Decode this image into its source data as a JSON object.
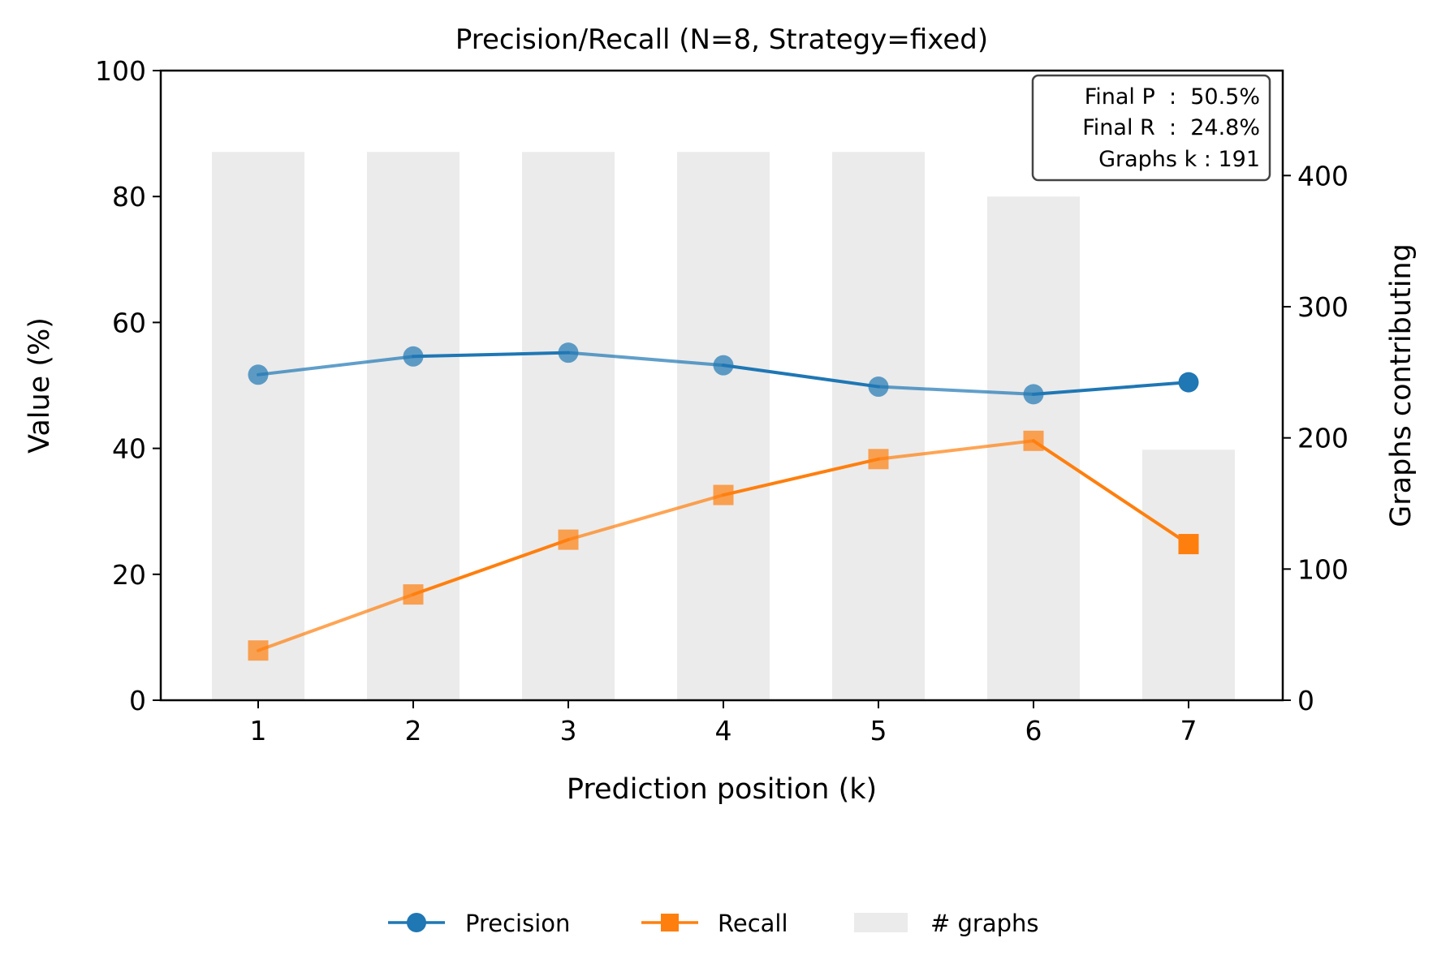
{
  "chart_data": {
    "type": "line",
    "title": "Precision/Recall (N=8, Strategy=fixed)",
    "xlabel": "Prediction position (k)",
    "ylabel": "Value (%)",
    "y2label": "Graphs contributing",
    "categories": [
      "1",
      "2",
      "3",
      "4",
      "5",
      "6",
      "7"
    ],
    "ylim": [
      0,
      100
    ],
    "y2lim": [
      0,
      480
    ],
    "yticks": [
      0,
      20,
      40,
      60,
      80,
      100
    ],
    "y2ticks": [
      0,
      100,
      200,
      300,
      400
    ],
    "series": [
      {
        "name": "Precision",
        "axis": "left",
        "marker": "circle",
        "color": "#1f77b4",
        "values": [
          51.7,
          54.6,
          55.2,
          53.2,
          49.8,
          48.6,
          50.5
        ]
      },
      {
        "name": "Recall",
        "axis": "right-none",
        "marker": "square",
        "color": "#ff7f0e",
        "values": [
          7.9,
          16.8,
          25.5,
          32.6,
          38.3,
          41.2,
          24.8
        ]
      }
    ],
    "bars": {
      "name": "# graphs",
      "axis": "right",
      "color": "#ebebeb",
      "values": [
        418,
        418,
        418,
        418,
        418,
        384,
        191
      ]
    },
    "info_box": [
      "Final P  :  50.5%",
      "Final R  :  24.8%",
      "Graphs k : 191"
    ],
    "legend": [
      "Precision",
      "Recall",
      "# graphs"
    ],
    "legend_position": "bottom-center",
    "grid": false
  }
}
